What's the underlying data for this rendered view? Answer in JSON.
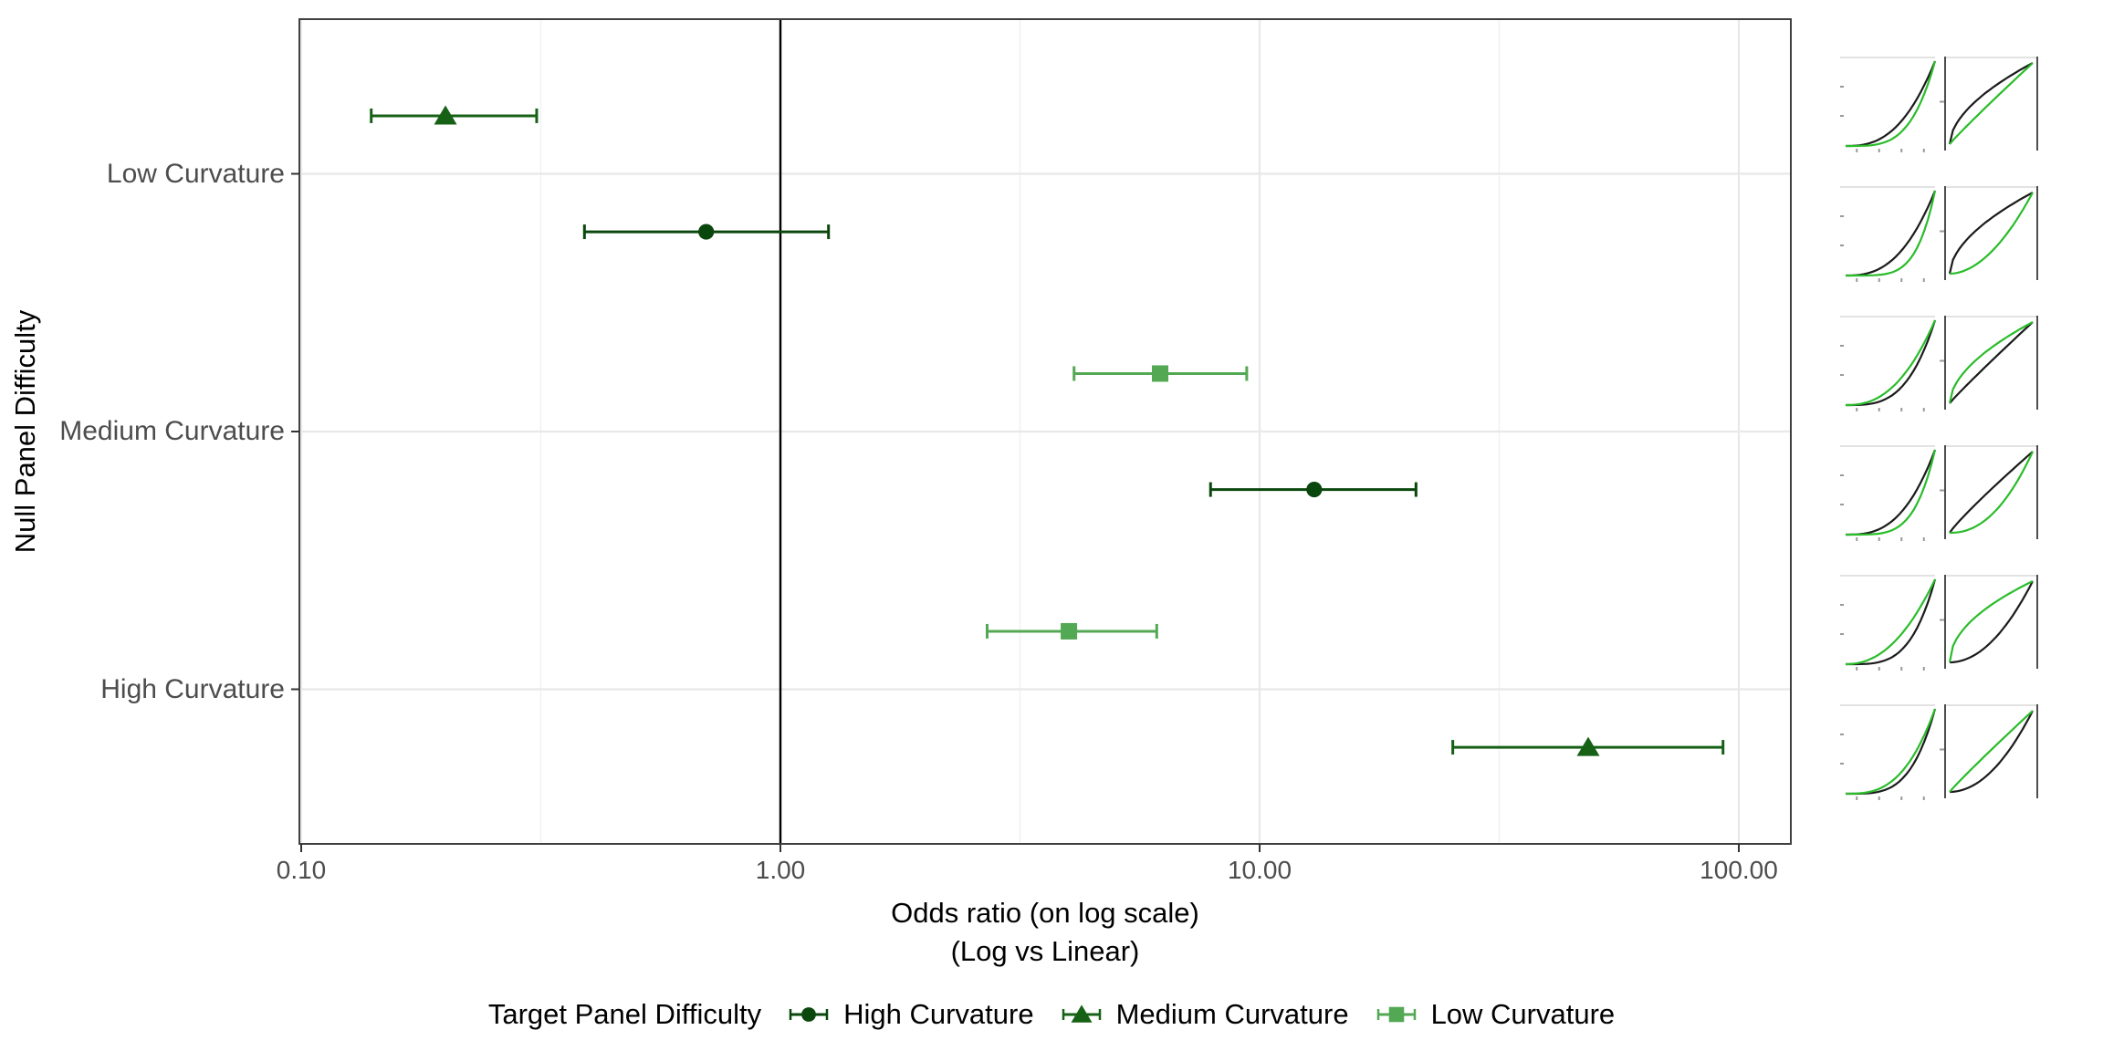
{
  "figure": {
    "background": "#ffffff",
    "panel_border_color": "#404040",
    "grid_major_color": "#e8e8e8",
    "grid_minor_color": "#f2f2f2",
    "axis_text_color": "#4d4d4d",
    "reference_line_color": "#000000"
  },
  "chart_data": {
    "type": "scatter",
    "subtype": "forest-plot-odds-ratios-with-error-bars",
    "title": "",
    "x_axis": {
      "label_line1": "Odds ratio (on log scale)",
      "label_line2": "(Log vs Linear)",
      "scale": "log10",
      "ticks": [
        0.1,
        1,
        10,
        100
      ],
      "tick_labels": [
        "0.10",
        "1.00",
        "10.00",
        "100.00"
      ],
      "minor_ticks": [
        0.3162,
        3.162,
        31.62
      ],
      "range": [
        0.099,
        113
      ]
    },
    "y_axis": {
      "label": "Null Panel Difficulty",
      "categories": [
        "Low Curvature",
        "Medium Curvature",
        "High Curvature"
      ]
    },
    "reference_line_x": 1.0,
    "grid": true,
    "target_order_top_to_bottom": [
      "Low Curvature",
      "Medium Curvature",
      "High Curvature"
    ],
    "points": [
      {
        "null_panel": "Low Curvature",
        "target": "Medium Curvature",
        "shape": "triangle",
        "or": 0.2,
        "ci_low": 0.14,
        "ci_high": 0.31
      },
      {
        "null_panel": "Low Curvature",
        "target": "High Curvature",
        "shape": "circle",
        "or": 0.7,
        "ci_low": 0.39,
        "ci_high": 1.26
      },
      {
        "null_panel": "Medium Curvature",
        "target": "Low Curvature",
        "shape": "square",
        "or": 6.2,
        "ci_low": 4.1,
        "ci_high": 9.4
      },
      {
        "null_panel": "Medium Curvature",
        "target": "High Curvature",
        "shape": "circle",
        "or": 13.0,
        "ci_low": 7.9,
        "ci_high": 21.2
      },
      {
        "null_panel": "High Curvature",
        "target": "Low Curvature",
        "shape": "square",
        "or": 4.0,
        "ci_low": 2.7,
        "ci_high": 6.1
      },
      {
        "null_panel": "High Curvature",
        "target": "Medium Curvature",
        "shape": "triangle",
        "or": 48.5,
        "ci_low": 25.3,
        "ci_high": 92.7
      }
    ],
    "legend": {
      "title": "Target Panel Difficulty",
      "position": "bottom",
      "items": [
        {
          "label": "High Curvature",
          "shape": "circle",
          "color": "#0a470d"
        },
        {
          "label": "Medium Curvature",
          "shape": "triangle",
          "color": "#176117"
        },
        {
          "label": "Low Curvature",
          "shape": "square",
          "color": "#53a854"
        }
      ]
    },
    "insets": {
      "description": "Six thumbnail rows at right margin; each row = one comparison, left mini-panel (log render) and right mini-panel (linear render), each showing a black null curve and a green target curve; curves approximated as y = x^k on unit square (k>1 convex, k<1 concave)",
      "black_color": "#1b1b1b",
      "green_color": "#2abc2a",
      "panel_order": [
        "log",
        "linear"
      ],
      "rows": [
        {
          "log": {
            "black": 2.6,
            "green": 3.8
          },
          "linear": {
            "black": 0.55,
            "green": 0.95
          }
        },
        {
          "log": {
            "black": 2.6,
            "green": 5.0
          },
          "linear": {
            "black": 0.55,
            "green": 1.9
          }
        },
        {
          "log": {
            "black": 3.3,
            "green": 2.4
          },
          "linear": {
            "black": 0.95,
            "green": 0.55
          }
        },
        {
          "log": {
            "black": 2.8,
            "green": 4.5
          },
          "linear": {
            "black": 0.9,
            "green": 2.2
          }
        },
        {
          "log": {
            "black": 3.8,
            "green": 2.2
          },
          "linear": {
            "black": 2.0,
            "green": 0.5
          }
        },
        {
          "log": {
            "black": 3.8,
            "green": 2.9
          },
          "linear": {
            "black": 2.0,
            "green": 0.95
          }
        }
      ]
    }
  }
}
